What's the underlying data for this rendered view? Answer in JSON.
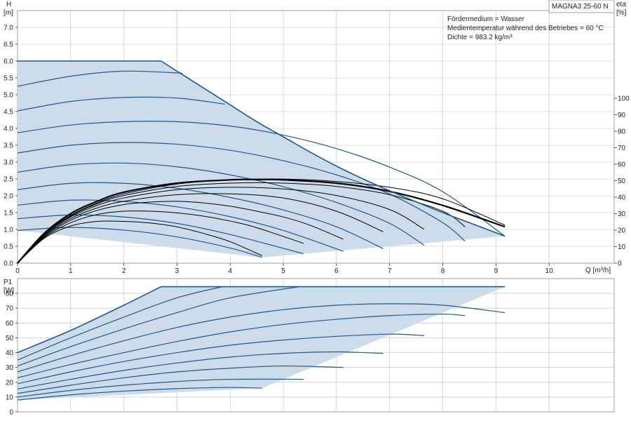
{
  "colors": {
    "envelope_fill": "#cddcea",
    "envelope_edge": "#1f5a8c",
    "curve_blue": "#1f5a8c",
    "efficiency": "#000000",
    "grid": "#bdbdbd",
    "frame": "#888888"
  },
  "chart_data": [
    {
      "type": "line",
      "title": "MAGNA3 25-60 N",
      "info_lines": [
        "Fördermedium = Wasser",
        "Medientemperatur während des Betriebes = 60 °C",
        "Dichte = 983.2 kg/m³"
      ],
      "xlabel": "Q [m³/h]",
      "ylabel_line1": "H",
      "ylabel_line2": "[m]",
      "y2label_line1": "eta",
      "y2label_line2": "[%]",
      "xlim": [
        0,
        11
      ],
      "ylim": [
        0,
        7.5
      ],
      "y2lim": [
        0,
        100
      ],
      "grid": true,
      "x_ticks": [
        "0",
        "1",
        "2",
        "3",
        "4",
        "5",
        "6",
        "7",
        "8",
        "9",
        "10"
      ],
      "y_ticks": [
        "0.0",
        "0.5",
        "1.0",
        "1.5",
        "2.0",
        "2.5",
        "3.0",
        "3.5",
        "4.0",
        "4.5",
        "5.0",
        "5.5",
        "6.0",
        "6.5",
        "7.0"
      ],
      "y2_ticks": [
        "0",
        "10",
        "20",
        "30",
        "40",
        "50",
        "60",
        "70",
        "80",
        "90",
        "100"
      ],
      "envelope": {
        "x": [
          0,
          2.7,
          3.0,
          3.5,
          4.0,
          4.5,
          5.0,
          5.5,
          6.0,
          6.5,
          7.0,
          7.5,
          8.0,
          8.5,
          9.17,
          4.6,
          0
        ],
        "y": [
          6.0,
          6.0,
          5.7,
          5.2,
          4.7,
          4.2,
          3.75,
          3.3,
          2.88,
          2.5,
          2.15,
          1.82,
          1.5,
          1.2,
          0.8,
          0.17,
          0.97
        ]
      },
      "head_curves": [
        {
          "x": [
            0,
            1,
            2,
            3,
            4,
            4.6
          ],
          "y": [
            0.97,
            1.06,
            0.98,
            0.78,
            0.45,
            0.17
          ]
        },
        {
          "x": [
            0,
            1,
            2,
            3,
            4,
            5.38
          ],
          "y": [
            1.32,
            1.43,
            1.37,
            1.18,
            0.85,
            0.28
          ]
        },
        {
          "x": [
            0,
            1,
            2,
            3,
            4,
            5,
            6.13
          ],
          "y": [
            1.72,
            1.87,
            1.83,
            1.67,
            1.38,
            0.97,
            0.35
          ]
        },
        {
          "x": [
            0,
            1,
            2,
            3,
            4,
            5,
            6,
            6.88
          ],
          "y": [
            2.18,
            2.37,
            2.37,
            2.22,
            1.95,
            1.58,
            1.08,
            0.43
          ]
        },
        {
          "x": [
            0,
            1,
            2,
            3,
            4,
            5,
            6,
            7,
            7.65
          ],
          "y": [
            2.7,
            2.92,
            2.97,
            2.86,
            2.62,
            2.27,
            1.8,
            1.18,
            0.53
          ]
        },
        {
          "x": [
            0,
            1,
            2,
            3,
            4,
            5,
            6,
            7,
            8,
            8.42
          ],
          "y": [
            3.27,
            3.5,
            3.58,
            3.53,
            3.35,
            3.04,
            2.62,
            2.05,
            1.2,
            0.65
          ]
        },
        {
          "x": [
            0,
            1,
            2,
            3,
            4,
            5,
            6,
            7,
            8,
            9.17
          ],
          "y": [
            3.87,
            4.1,
            4.2,
            4.2,
            4.07,
            3.8,
            3.4,
            2.85,
            2.12,
            0.8
          ]
        },
        {
          "x": [
            0,
            1,
            2,
            3,
            3.9
          ],
          "y": [
            4.52,
            4.8,
            4.92,
            4.9,
            4.72
          ]
        },
        {
          "x": [
            0,
            1,
            2,
            3.1
          ],
          "y": [
            5.25,
            5.55,
            5.7,
            5.64
          ]
        }
      ],
      "efficiency_curves": [
        {
          "x": [
            0,
            0.5,
            1,
            1.5,
            2,
            2.5,
            3,
            3.5,
            4,
            4.6
          ],
          "y": [
            0,
            15,
            22.5,
            25.3,
            25.3,
            24.3,
            22,
            18,
            13,
            4.5
          ]
        },
        {
          "x": [
            0,
            0.5,
            1,
            1.5,
            2,
            2.5,
            3,
            3.5,
            4,
            4.5,
            5.38
          ],
          "y": [
            0,
            15.5,
            24.5,
            29.5,
            31.5,
            31.5,
            30.5,
            28.5,
            25.5,
            21.5,
            12
          ]
        },
        {
          "x": [
            0,
            0.5,
            1,
            1.5,
            2,
            2.5,
            3,
            3.5,
            4,
            4.5,
            5,
            5.5,
            6.13
          ],
          "y": [
            0,
            16,
            26,
            32,
            35.5,
            37,
            37.5,
            36.5,
            34.5,
            31.5,
            28,
            23,
            14.5
          ]
        },
        {
          "x": [
            0,
            0.5,
            1,
            1.5,
            2,
            3,
            4,
            5,
            6,
            6.88
          ],
          "y": [
            0,
            16.5,
            27,
            33.5,
            37.5,
            41.5,
            42,
            39.5,
            31.5,
            19
          ]
        },
        {
          "x": [
            0,
            0.5,
            1,
            1.5,
            2,
            3,
            4,
            5,
            6,
            7,
            7.65
          ],
          "y": [
            0,
            17,
            28,
            35,
            39.5,
            44.5,
            46,
            45,
            41,
            32.5,
            20.5
          ]
        },
        {
          "x": [
            0,
            0.5,
            1,
            1.5,
            2,
            3,
            4,
            5,
            6,
            7,
            8,
            8.42
          ],
          "y": [
            0,
            17,
            28.5,
            36,
            41,
            46.5,
            48.5,
            48.5,
            46.5,
            41.5,
            31.5,
            22
          ]
        },
        {
          "x": [
            0,
            0.5,
            1,
            1.5,
            2,
            3,
            4,
            5,
            6,
            7,
            8,
            9.17
          ],
          "y": [
            0,
            17.5,
            29,
            36.5,
            42,
            48,
            50.5,
            51,
            49.5,
            46,
            39,
            23
          ]
        },
        {
          "x": [
            0,
            0.5,
            1,
            1.5,
            2,
            3,
            4,
            4.5,
            5,
            6,
            7,
            8,
            9.17
          ],
          "y": [
            0,
            18,
            30,
            37.5,
            43,
            48.5,
            50.5,
            50.7,
            50.5,
            48.5,
            43.5,
            35,
            22
          ]
        }
      ]
    },
    {
      "type": "line",
      "ylabel_line1": "P1",
      "ylabel_line2": "[W]",
      "xlim": [
        0,
        11
      ],
      "ylim": [
        0,
        90
      ],
      "grid": true,
      "y_ticks": [
        "0",
        "10",
        "20",
        "30",
        "40",
        "50",
        "60",
        "70",
        "80"
      ],
      "envelope": {
        "x": [
          0,
          1,
          2,
          2.7,
          9.17,
          4.6,
          0
        ],
        "y": [
          40,
          55,
          72,
          84.5,
          84.5,
          16,
          8
        ]
      },
      "power_curves": [
        {
          "x": [
            0,
            1,
            2,
            3,
            4,
            4.6
          ],
          "y": [
            8,
            11.5,
            14,
            15.7,
            16.5,
            16
          ]
        },
        {
          "x": [
            0,
            1,
            2,
            3,
            4,
            5.38
          ],
          "y": [
            10,
            14.5,
            18,
            20.5,
            22,
            22
          ]
        },
        {
          "x": [
            0,
            1,
            2,
            3,
            4,
            5,
            6.13
          ],
          "y": [
            12.5,
            18,
            23,
            27,
            29.5,
            31,
            30
          ]
        },
        {
          "x": [
            0,
            1,
            2,
            3,
            4,
            5,
            6,
            6.88
          ],
          "y": [
            15.5,
            22,
            28,
            33,
            37,
            39.5,
            40.5,
            39.5
          ]
        },
        {
          "x": [
            0,
            1,
            2,
            3,
            4,
            5,
            6,
            7,
            7.65
          ],
          "y": [
            19,
            27,
            34,
            40,
            45,
            48.5,
            51,
            52.5,
            51.5
          ]
        },
        {
          "x": [
            0,
            1,
            2,
            3,
            4,
            5,
            6,
            7,
            8,
            8.42
          ],
          "y": [
            23,
            32,
            40,
            47.5,
            54,
            59,
            62.5,
            65,
            66,
            65
          ]
        },
        {
          "x": [
            0,
            1,
            2,
            3,
            4,
            5,
            6,
            7,
            8,
            9.17
          ],
          "y": [
            27,
            38,
            48,
            57,
            64,
            69,
            72,
            73,
            72,
            67
          ]
        },
        {
          "x": [
            0,
            1,
            2,
            3,
            4,
            5.3
          ],
          "y": [
            31,
            44,
            56,
            67,
            77,
            84.5
          ]
        },
        {
          "x": [
            0,
            1,
            2,
            3,
            3.85
          ],
          "y": [
            35,
            50,
            64,
            77,
            84.5
          ]
        }
      ]
    }
  ]
}
